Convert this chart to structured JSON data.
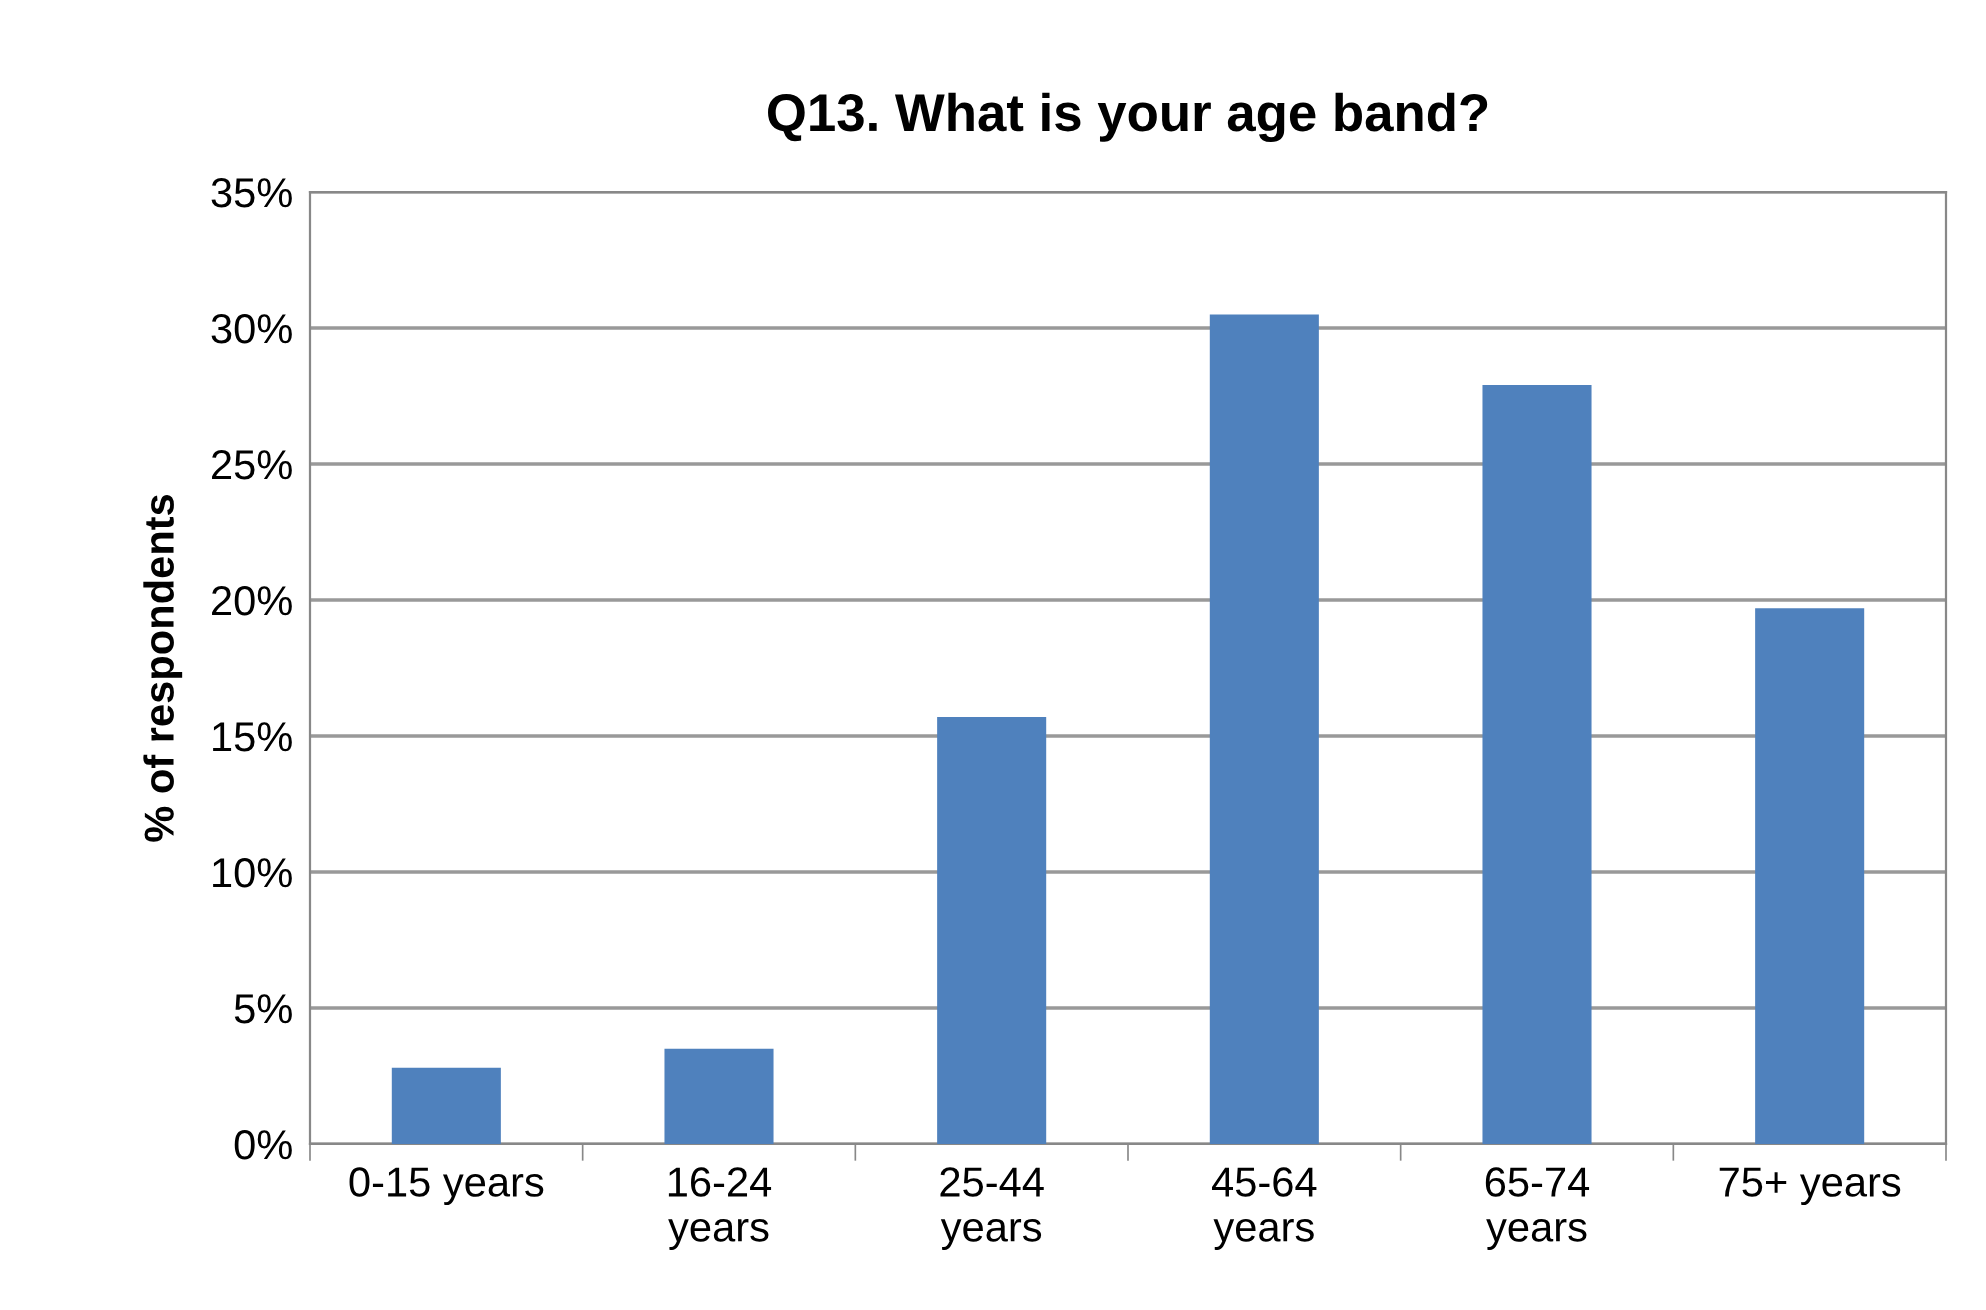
{
  "chart_data": {
    "type": "bar",
    "title": "Q13. What is your age band?",
    "ylabel": "% of respondents",
    "categories": [
      "0-15 years",
      "16-24\nyears",
      "25-44\nyears",
      "45-64\nyears",
      "65-74\nyears",
      "75+ years"
    ],
    "values": [
      2.8,
      3.5,
      15.7,
      30.5,
      27.9,
      19.7
    ],
    "color": "#4f81bd",
    "ylim": [
      0,
      35
    ],
    "yticks": [
      {
        "value": 0,
        "label": "0%"
      },
      {
        "value": 5,
        "label": "5%"
      },
      {
        "value": 10,
        "label": "10%"
      },
      {
        "value": 15,
        "label": "15%"
      },
      {
        "value": 20,
        "label": "20%"
      },
      {
        "value": 25,
        "label": "25%"
      },
      {
        "value": 30,
        "label": "30%"
      },
      {
        "value": 35,
        "label": "35%"
      }
    ],
    "grid": "y",
    "legend": false
  }
}
